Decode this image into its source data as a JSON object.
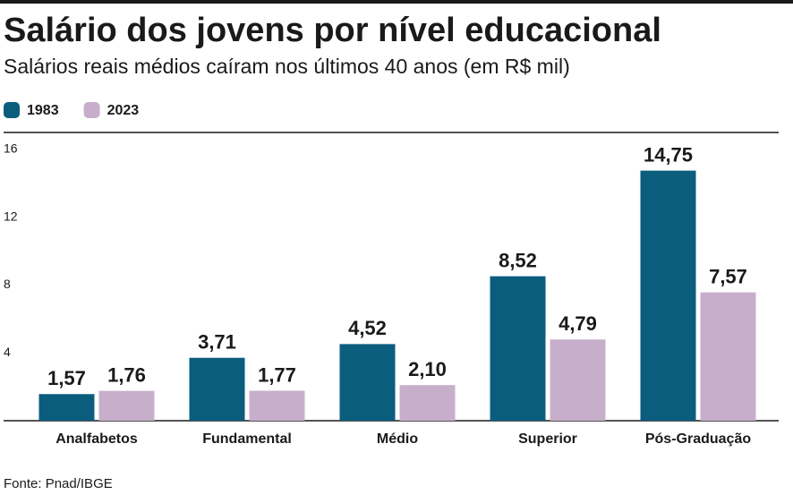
{
  "chart_data": {
    "type": "bar",
    "title": "Salário dos jovens por nível educacional",
    "subtitle": "Salários reais médios caíram nos últimos 40 anos (em R$ mil)",
    "source": "Fonte: Pnad/IBGE",
    "categories": [
      "Analfabetos",
      "Fundamental",
      "Médio",
      "Superior",
      "Pós-Graduação"
    ],
    "series": [
      {
        "name": "1983",
        "color": "#0b5d7e",
        "values": [
          1.57,
          3.71,
          4.52,
          8.52,
          14.75
        ],
        "value_labels": [
          "1,57",
          "3,71",
          "4,52",
          "8,52",
          "14,75"
        ]
      },
      {
        "name": "2023",
        "color": "#c7afcb",
        "values": [
          1.76,
          1.77,
          2.1,
          4.79,
          7.57
        ],
        "value_labels": [
          "1,76",
          "1,77",
          "2,10",
          "4,79",
          "7,57"
        ]
      }
    ],
    "ylim": [
      0,
      17
    ],
    "yticks": [
      4,
      8,
      12,
      16
    ],
    "grid": false,
    "legend": "top-left"
  }
}
